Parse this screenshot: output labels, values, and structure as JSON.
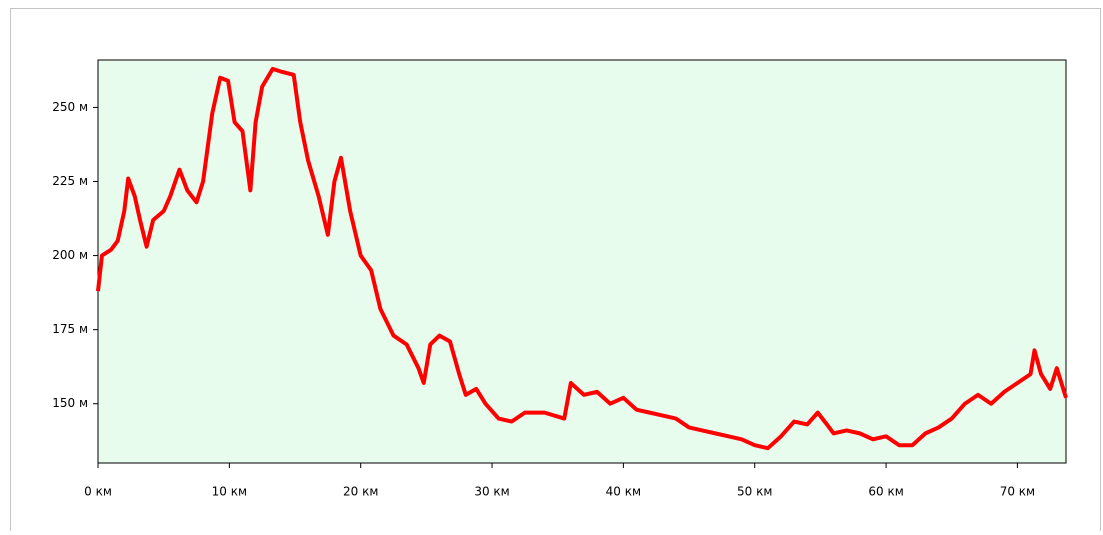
{
  "chart_data": {
    "type": "line",
    "x": [
      0,
      0.3,
      1,
      1.5,
      2,
      2.3,
      2.8,
      3.2,
      3.7,
      4.2,
      5,
      5.5,
      6.2,
      6.8,
      7.5,
      8,
      8.7,
      9.3,
      9.9,
      10.4,
      11,
      11.6,
      12,
      12.5,
      13.3,
      14,
      14.9,
      15.4,
      16,
      16.8,
      17.5,
      18,
      18.5,
      19.2,
      20,
      20.8,
      21.5,
      22.5,
      23.5,
      24.4,
      24.8,
      25.3,
      26,
      26.8,
      27.5,
      28,
      28.8,
      29.5,
      30.5,
      31.5,
      32.5,
      34,
      35.5,
      36,
      37,
      38,
      39,
      40,
      41,
      42,
      43,
      44,
      45,
      46,
      47,
      48,
      49,
      50,
      51,
      52,
      53,
      54,
      54.8,
      55.5,
      56,
      57,
      58,
      59,
      60,
      61,
      62,
      63,
      64,
      65,
      66,
      67,
      68,
      69,
      70,
      71,
      71.3,
      71.8,
      72.5,
      73,
      73.7
    ],
    "series": [
      {
        "color": "#ff0000",
        "values": [
          188,
          200,
          202,
          205,
          215,
          226,
          220,
          212,
          203,
          212,
          215,
          220,
          229,
          222,
          218,
          225,
          248,
          260,
          259,
          245,
          242,
          222,
          245,
          257,
          263,
          262,
          261,
          245,
          232,
          220,
          207,
          225,
          233,
          215,
          200,
          195,
          182,
          173,
          170,
          162,
          157,
          170,
          173,
          171,
          160,
          153,
          155,
          150,
          145,
          144,
          147,
          147,
          145,
          157,
          153,
          154,
          150,
          152,
          148,
          147,
          146,
          145,
          142,
          141,
          140,
          139,
          138,
          136,
          135,
          139,
          144,
          143,
          147,
          143,
          140,
          141,
          140,
          138,
          139,
          136,
          136,
          140,
          142,
          145,
          150,
          153,
          150,
          154,
          157,
          160,
          168,
          160,
          155,
          162,
          152
        ]
      }
    ],
    "xlim": [
      0,
      73.7
    ],
    "ylim": [
      130,
      266
    ],
    "xticks": [
      {
        "value": 0,
        "label": "0 км"
      },
      {
        "value": 10,
        "label": "10 км"
      },
      {
        "value": 20,
        "label": "20 км"
      },
      {
        "value": 30,
        "label": "30 км"
      },
      {
        "value": 40,
        "label": "40 км"
      },
      {
        "value": 50,
        "label": "50 км"
      },
      {
        "value": 60,
        "label": "60 км"
      },
      {
        "value": 70,
        "label": "70 км"
      }
    ],
    "yticks": [
      {
        "value": 150,
        "label": "150 м"
      },
      {
        "value": 175,
        "label": "175 м"
      },
      {
        "value": 200,
        "label": "200 м"
      },
      {
        "value": 225,
        "label": "225 м"
      },
      {
        "value": 250,
        "label": "250 м"
      }
    ],
    "background": "#e8fcee"
  }
}
